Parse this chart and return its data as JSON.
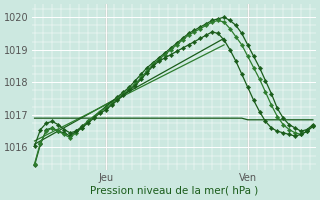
{
  "xlabel": "Pression niveau de la mer( hPa )",
  "bg_color": "#cce8e0",
  "grid_color": "#ffffff",
  "line_color_dark": "#1a5c1a",
  "line_color_mid": "#2e7d2e",
  "ylim": [
    1015.3,
    1020.4
  ],
  "xlim": [
    -0.5,
    47.5
  ],
  "jeu_x": 12,
  "ven_x": 36,
  "tick_color": "#555555",
  "series": {
    "s_markers1": [
      1015.45,
      1016.1,
      1016.55,
      1016.6,
      1016.5,
      1016.45,
      1016.35,
      1016.5,
      1016.65,
      1016.8,
      1016.95,
      1017.1,
      1017.25,
      1017.4,
      1017.55,
      1017.7,
      1017.85,
      1018.05,
      1018.25,
      1018.45,
      1018.6,
      1018.75,
      1018.9,
      1019.05,
      1019.2,
      1019.35,
      1019.5,
      1019.6,
      1019.7,
      1019.8,
      1019.9,
      1019.95,
      1020.0,
      1019.9,
      1019.75,
      1019.5,
      1019.15,
      1018.8,
      1018.45,
      1018.05,
      1017.65,
      1017.2,
      1016.9,
      1016.7,
      1016.6,
      1016.5,
      1016.55,
      1016.7
    ],
    "s_markers2": [
      1015.5,
      1016.15,
      1016.5,
      1016.6,
      1016.5,
      1016.4,
      1016.3,
      1016.45,
      1016.6,
      1016.8,
      1016.95,
      1017.1,
      1017.2,
      1017.35,
      1017.5,
      1017.65,
      1017.8,
      1017.95,
      1018.15,
      1018.35,
      1018.55,
      1018.7,
      1018.85,
      1019.0,
      1019.15,
      1019.3,
      1019.45,
      1019.55,
      1019.65,
      1019.75,
      1019.85,
      1019.9,
      1019.85,
      1019.65,
      1019.4,
      1019.15,
      1018.8,
      1018.45,
      1018.1,
      1017.7,
      1017.3,
      1016.95,
      1016.7,
      1016.55,
      1016.45,
      1016.4,
      1016.5,
      1016.65
    ],
    "s_markers3": [
      1016.05,
      1016.55,
      1016.75,
      1016.8,
      1016.7,
      1016.55,
      1016.45,
      1016.5,
      1016.6,
      1016.75,
      1016.9,
      1017.05,
      1017.15,
      1017.3,
      1017.45,
      1017.6,
      1017.75,
      1017.9,
      1018.1,
      1018.3,
      1018.5,
      1018.65,
      1018.75,
      1018.85,
      1018.95,
      1019.05,
      1019.15,
      1019.25,
      1019.35,
      1019.45,
      1019.55,
      1019.5,
      1019.3,
      1019.0,
      1018.65,
      1018.25,
      1017.85,
      1017.45,
      1017.1,
      1016.8,
      1016.6,
      1016.5,
      1016.45,
      1016.4,
      1016.35,
      1016.4,
      1016.5,
      1016.65
    ],
    "s_flat": [
      1016.9,
      1016.9,
      1016.9,
      1016.9,
      1016.9,
      1016.9,
      1016.9,
      1016.9,
      1016.9,
      1016.9,
      1016.9,
      1016.9,
      1016.9,
      1016.9,
      1016.9,
      1016.9,
      1016.9,
      1016.9,
      1016.9,
      1016.9,
      1016.9,
      1016.9,
      1016.9,
      1016.9,
      1016.9,
      1016.9,
      1016.9,
      1016.9,
      1016.9,
      1016.9,
      1016.9,
      1016.9,
      1016.9,
      1016.9,
      1016.9,
      1016.9,
      1016.85,
      1016.85,
      1016.85,
      1016.85,
      1016.85,
      1016.85,
      1016.85,
      1016.85,
      1016.85,
      1016.85,
      1016.85,
      1016.85
    ],
    "s_linear1": {
      "x": [
        0,
        32
      ],
      "y": [
        1016.1,
        1019.35
      ]
    },
    "s_linear2": {
      "x": [
        0,
        32
      ],
      "y": [
        1016.2,
        1019.15
      ]
    }
  },
  "marker": "D",
  "markersize": 2.2,
  "linewidth": 0.9
}
